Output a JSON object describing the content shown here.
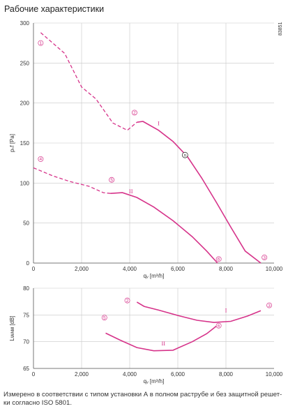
{
  "page": {
    "title": "Рабочие характеристики",
    "footnote": "Измерено в соответствии с типом установки А в полном раструбе и без защитной решет-ки согласно ISO 5801.",
    "code": "83851"
  },
  "colors": {
    "curve": "#d6338a",
    "grid": "#c8c8c8",
    "axis": "#555555",
    "text": "#333333"
  },
  "chart_data": [
    {
      "type": "line",
      "xlabel": "qᵥ [m³/h]",
      "ylabel": "pₛf [Pa]",
      "xlim": [
        0,
        10000
      ],
      "ylim": [
        0,
        300
      ],
      "xticks": [
        "0",
        "2,000",
        "4,000",
        "6,000",
        "8,000",
        "10,000"
      ],
      "yticks": [
        "0",
        "50",
        "100",
        "150",
        "200",
        "250",
        "300"
      ],
      "grid": true,
      "series": [
        {
          "name": "I",
          "dashed": [
            [
              300,
              288
            ],
            [
              1300,
              262
            ],
            [
              2000,
              220
            ],
            [
              2600,
              205
            ],
            [
              3300,
              175
            ],
            [
              3900,
              166
            ],
            [
              4300,
              176
            ]
          ],
          "solid": [
            [
              4300,
              176
            ],
            [
              4550,
              177
            ],
            [
              5200,
              166
            ],
            [
              5800,
              152
            ],
            [
              6400,
              133
            ],
            [
              7000,
              106
            ],
            [
              7600,
              76
            ],
            [
              8200,
              45
            ],
            [
              8800,
              15
            ],
            [
              9450,
              0
            ]
          ]
        },
        {
          "name": "II",
          "dashed": [
            [
              0,
              119
            ],
            [
              800,
              109
            ],
            [
              1500,
              102
            ],
            [
              2300,
              96
            ],
            [
              2900,
              88
            ],
            [
              3200,
              87
            ]
          ],
          "solid": [
            [
              3200,
              87
            ],
            [
              3700,
              88
            ],
            [
              4300,
              82
            ],
            [
              5000,
              70
            ],
            [
              5800,
              53
            ],
            [
              6600,
              33
            ],
            [
              7200,
              15
            ],
            [
              7650,
              0
            ]
          ]
        }
      ],
      "markers": [
        {
          "label": "1",
          "x": 300,
          "y": 275
        },
        {
          "label": "2",
          "x": 4200,
          "y": 188
        },
        {
          "label": "3",
          "x": 9600,
          "y": 7
        },
        {
          "label": "4",
          "x": 300,
          "y": 130
        },
        {
          "label": "5",
          "x": 3250,
          "y": 104
        },
        {
          "label": "6",
          "x": 7700,
          "y": 5
        }
      ],
      "annotations": [
        {
          "text": "I",
          "x": 5200,
          "y": 175
        },
        {
          "text": "II",
          "x": 4050,
          "y": 90
        },
        {
          "text": "n",
          "x": 6300,
          "y": 135
        }
      ]
    },
    {
      "type": "line",
      "xlabel": "qᵥ [m³/h]",
      "ylabel": "Lᴡᴀᴍ [dB]",
      "xlim": [
        0,
        10000
      ],
      "ylim": [
        65,
        80
      ],
      "xticks": [
        "0",
        "2,000",
        "4,000",
        "6,000",
        "8,000",
        "10,000"
      ],
      "yticks": [
        "65",
        "70",
        "75",
        "80"
      ],
      "grid": true,
      "series": [
        {
          "name": "I",
          "solid": [
            [
              4300,
              77.4
            ],
            [
              4600,
              76.6
            ],
            [
              5200,
              75.9
            ],
            [
              6000,
              74.9
            ],
            [
              6800,
              74
            ],
            [
              7500,
              73.6
            ],
            [
              8200,
              73.8
            ],
            [
              8900,
              74.8
            ],
            [
              9450,
              75.8
            ]
          ]
        },
        {
          "name": "II",
          "solid": [
            [
              3000,
              71.6
            ],
            [
              3600,
              70.3
            ],
            [
              4300,
              68.9
            ],
            [
              5000,
              68.3
            ],
            [
              5800,
              68.4
            ],
            [
              6600,
              70
            ],
            [
              7200,
              71.5
            ],
            [
              7600,
              72.9
            ]
          ]
        }
      ],
      "markers": [
        {
          "label": "2",
          "x": 3900,
          "y": 77.7
        },
        {
          "label": "3",
          "x": 9800,
          "y": 76.8
        },
        {
          "label": "5",
          "x": 2950,
          "y": 74.5
        },
        {
          "label": "6",
          "x": 7700,
          "y": 73
        }
      ],
      "annotations": [
        {
          "text": "I",
          "x": 8000,
          "y": 75.9
        },
        {
          "text": "II",
          "x": 5400,
          "y": 69.7
        }
      ]
    }
  ]
}
